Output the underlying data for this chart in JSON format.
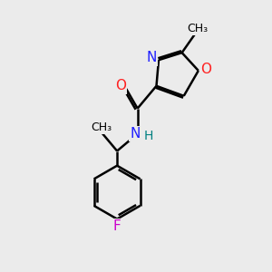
{
  "bg_color": "#ebebeb",
  "atom_colors": {
    "C": "#000000",
    "N": "#2020ff",
    "O": "#ff2020",
    "F": "#cc00cc",
    "H": "#008080"
  },
  "bond_color": "#000000",
  "bond_width": 1.8,
  "font_size": 11,
  "font_size_small": 9.5
}
